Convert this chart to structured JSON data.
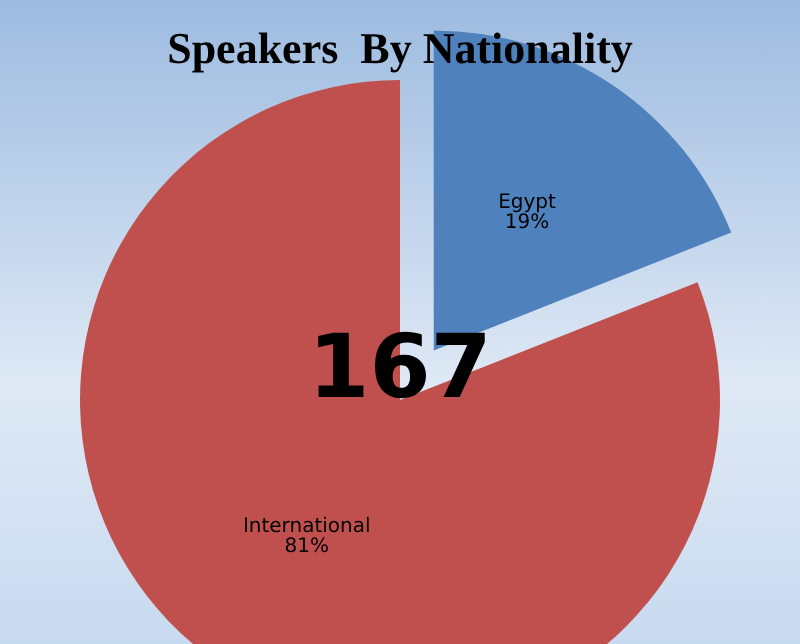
{
  "chart_data": {
    "type": "pie",
    "title": "Speakers  By Nationality",
    "categories": [
      "Egypt",
      "International"
    ],
    "values": [
      19,
      81
    ],
    "value_labels": [
      "19%",
      "81%"
    ],
    "colors": [
      "#4f81bd",
      "#c0504d"
    ],
    "annotations": [
      "167"
    ],
    "legend": false
  }
}
